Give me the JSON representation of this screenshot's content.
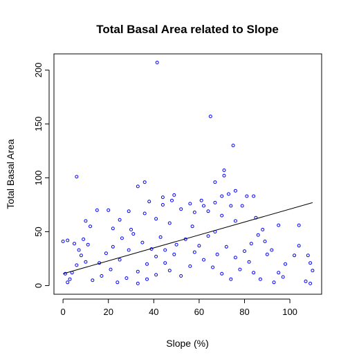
{
  "chart_data": {
    "type": "scatter",
    "title": "Total Basal Area related to Slope",
    "xlabel": "Slope (%)",
    "ylabel": "Total Basal Area",
    "xlim": [
      -4,
      114
    ],
    "ylim": [
      -8,
      215
    ],
    "xticks": [
      0,
      20,
      40,
      60,
      80,
      100
    ],
    "yticks": [
      0,
      50,
      100,
      150,
      200
    ],
    "grid": false,
    "point_color": "#0000ff",
    "line_color": "#000000",
    "regression_line": {
      "x": [
        0,
        110
      ],
      "y": [
        11,
        77
      ]
    },
    "series": [
      {
        "points": [
          [
            41.5,
            207
          ],
          [
            65,
            157
          ],
          [
            75,
            130
          ],
          [
            71,
            107
          ],
          [
            71,
            102
          ],
          [
            6,
            101
          ],
          [
            36,
            96
          ],
          [
            67,
            96
          ],
          [
            33,
            92
          ],
          [
            76,
            88
          ],
          [
            73,
            85
          ],
          [
            49,
            84
          ],
          [
            70,
            83
          ],
          [
            81,
            83
          ],
          [
            44,
            82
          ],
          [
            84,
            83
          ],
          [
            61,
            79
          ],
          [
            67,
            77
          ],
          [
            38,
            78
          ],
          [
            48,
            79
          ],
          [
            56,
            76
          ],
          [
            62,
            74
          ],
          [
            74,
            74
          ],
          [
            79,
            74
          ],
          [
            44,
            75
          ],
          [
            20,
            70
          ],
          [
            15,
            70
          ],
          [
            29,
            69
          ],
          [
            36,
            67
          ],
          [
            52,
            71
          ],
          [
            64,
            69
          ],
          [
            70,
            65
          ],
          [
            58,
            68
          ],
          [
            10,
            60
          ],
          [
            25,
            61
          ],
          [
            41,
            62
          ],
          [
            47,
            58
          ],
          [
            76,
            60
          ],
          [
            85,
            63
          ],
          [
            95,
            56
          ],
          [
            104,
            56
          ],
          [
            12,
            55
          ],
          [
            22,
            53
          ],
          [
            30,
            52
          ],
          [
            57,
            55
          ],
          [
            88,
            52
          ],
          [
            67,
            50
          ],
          [
            2,
            42
          ],
          [
            5,
            39
          ],
          [
            0,
            41
          ],
          [
            9,
            43
          ],
          [
            11,
            38
          ],
          [
            7,
            33
          ],
          [
            8,
            28
          ],
          [
            10,
            22
          ],
          [
            6,
            19
          ],
          [
            4,
            12
          ],
          [
            3,
            6
          ],
          [
            2,
            3
          ],
          [
            1,
            11
          ],
          [
            108,
            28
          ],
          [
            109,
            21
          ],
          [
            110,
            14
          ],
          [
            107,
            4
          ],
          [
            109,
            2
          ],
          [
            104,
            37
          ],
          [
            102,
            28
          ],
          [
            98,
            20
          ],
          [
            97,
            8
          ],
          [
            95,
            12
          ],
          [
            93,
            3
          ],
          [
            90,
            29
          ],
          [
            92,
            33
          ],
          [
            89,
            41
          ],
          [
            86,
            47
          ],
          [
            83,
            39
          ],
          [
            24,
            3
          ],
          [
            28,
            7
          ],
          [
            33,
            13
          ],
          [
            37,
            20
          ],
          [
            41,
            27
          ],
          [
            45,
            33
          ],
          [
            50,
            38
          ],
          [
            54,
            43
          ],
          [
            58,
            31
          ],
          [
            62,
            24
          ],
          [
            66,
            17
          ],
          [
            70,
            11
          ],
          [
            74,
            6
          ],
          [
            78,
            15
          ],
          [
            82,
            22
          ],
          [
            16,
            21
          ],
          [
            19,
            30
          ],
          [
            22,
            36
          ],
          [
            26,
            44
          ],
          [
            31,
            48
          ],
          [
            35,
            40
          ],
          [
            39,
            34
          ],
          [
            43,
            45
          ],
          [
            47,
            14
          ],
          [
            52,
            9
          ],
          [
            56,
            18
          ],
          [
            60,
            37
          ],
          [
            64,
            46
          ],
          [
            68,
            29
          ],
          [
            72,
            36
          ],
          [
            76,
            26
          ],
          [
            80,
            32
          ],
          [
            84,
            12
          ],
          [
            87,
            6
          ],
          [
            13,
            5
          ],
          [
            17,
            9
          ],
          [
            21,
            15
          ],
          [
            25,
            24
          ],
          [
            29,
            33
          ],
          [
            33,
            2
          ],
          [
            37,
            6
          ],
          [
            41,
            10
          ],
          [
            45,
            21
          ],
          [
            49,
            29
          ]
        ]
      }
    ]
  }
}
